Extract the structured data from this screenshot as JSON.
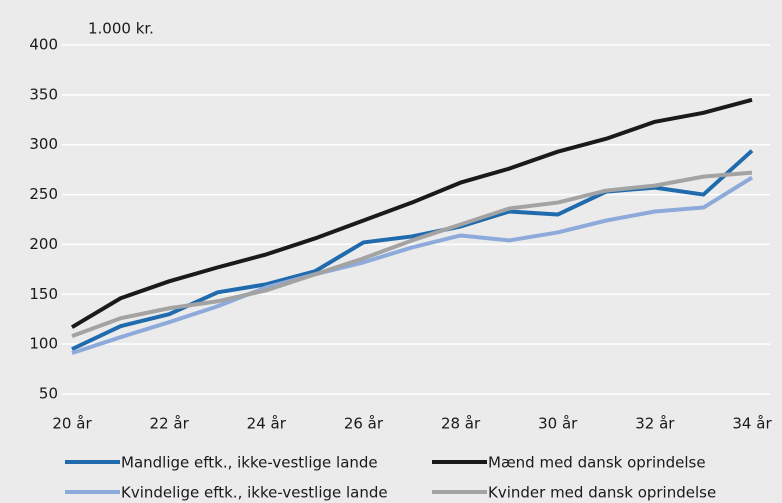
{
  "chart_data": {
    "type": "line",
    "y_unit_label": "1.000 kr.",
    "categories": [
      "20 år",
      null,
      "22 år",
      null,
      "24 år",
      null,
      "26 år",
      null,
      "28 år",
      null,
      "30 år",
      null,
      "32 år",
      null,
      "34 år"
    ],
    "series": [
      {
        "name": "Mandlige eftk., ikke-vestlige lande",
        "color": "#1f6bad",
        "values": [
          95,
          118,
          130,
          152,
          160,
          173,
          202,
          208,
          218,
          233,
          230,
          253,
          257,
          250,
          294
        ]
      },
      {
        "name": "Mænd med dansk oprindelse",
        "color": "#1a1a1a",
        "values": [
          117,
          146,
          163,
          177,
          190,
          206,
          224,
          242,
          262,
          276,
          293,
          306,
          323,
          332,
          345
        ]
      },
      {
        "name": "Kvindelige eftk., ikke-vestlige lande",
        "color": "#8eaadb",
        "values": [
          91,
          107,
          122,
          138,
          157,
          170,
          182,
          197,
          209,
          204,
          212,
          224,
          233,
          237,
          267
        ]
      },
      {
        "name": "Kvinder med dansk oprindelse",
        "color": "#a3a3a3",
        "values": [
          108,
          126,
          136,
          143,
          154,
          170,
          186,
          204,
          220,
          236,
          242,
          254,
          259,
          268,
          272
        ]
      }
    ],
    "ylim": [
      50,
      400
    ],
    "yticks": [
      50,
      100,
      150,
      200,
      250,
      300,
      350,
      400
    ],
    "grid": true
  }
}
